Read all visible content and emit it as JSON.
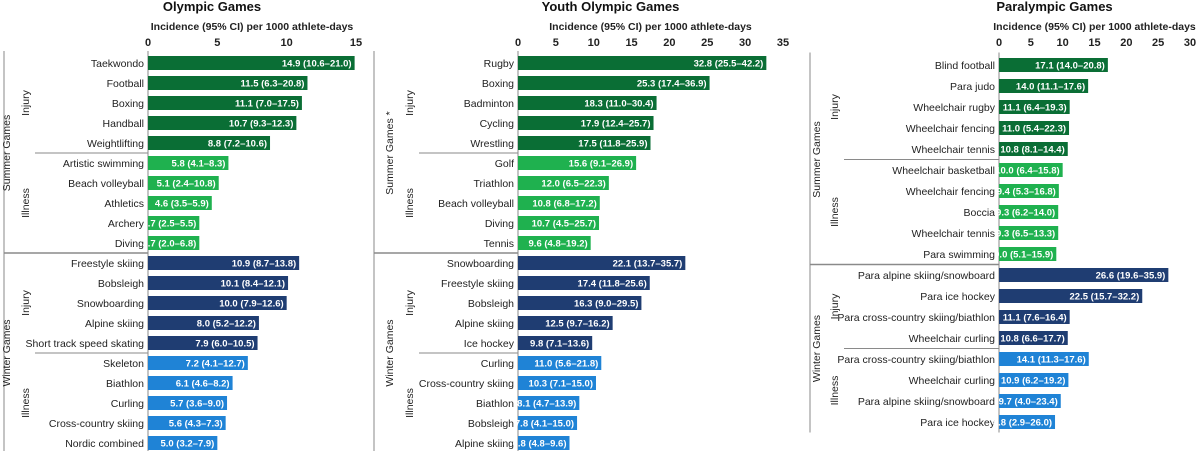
{
  "figure": {
    "charts": [
      {
        "title": "Olympic Games",
        "axis_label": "Incidence (95% CI) per 1000 athlete-days",
        "xlim": [
          0,
          15
        ],
        "ticks": [
          "0",
          "5",
          "10",
          "15"
        ],
        "groups": [
          {
            "games": "Summer Games",
            "sections": [
              {
                "label": "Injury",
                "color": "#0a6e35",
                "bars": [
                  {
                    "category": "Taekwondo",
                    "value": 14.9,
                    "label": "14.9 (10.6–21.0)"
                  },
                  {
                    "category": "Football",
                    "value": 11.5,
                    "label": "11.5 (6.3–20.8)"
                  },
                  {
                    "category": "Boxing",
                    "value": 11.1,
                    "label": "11.1 (7.0–17.5)"
                  },
                  {
                    "category": "Handball",
                    "value": 10.7,
                    "label": "10.7 (9.3–12.3)"
                  },
                  {
                    "category": "Weightlifting",
                    "value": 8.8,
                    "label": "8.8 (7.2–10.6)"
                  }
                ]
              },
              {
                "label": "Illness",
                "color": "#1fb14f",
                "bars": [
                  {
                    "category": "Artistic swimming",
                    "value": 5.8,
                    "label": "5.8 (4.1–8.3)"
                  },
                  {
                    "category": "Beach volleyball",
                    "value": 5.1,
                    "label": "5.1 (2.4–10.8)"
                  },
                  {
                    "category": "Athletics",
                    "value": 4.6,
                    "label": "4.6 (3.5–5.9)"
                  },
                  {
                    "category": "Archery",
                    "value": 3.7,
                    "label": "3.7 (2.5–5.5)"
                  },
                  {
                    "category": "Diving",
                    "value": 3.7,
                    "label": "3.7 (2.0–6.8)"
                  }
                ]
              }
            ]
          },
          {
            "games": "Winter Games",
            "sections": [
              {
                "label": "Injury",
                "color": "#1f3d72",
                "bars": [
                  {
                    "category": "Freestyle skiing",
                    "value": 10.9,
                    "label": "10.9 (8.7–13.8)"
                  },
                  {
                    "category": "Bobsleigh",
                    "value": 10.1,
                    "label": "10.1 (8.4–12.1)"
                  },
                  {
                    "category": "Snowboarding",
                    "value": 10.0,
                    "label": "10.0 (7.9–12.6)"
                  },
                  {
                    "category": "Alpine skiing",
                    "value": 8.0,
                    "label": "8.0 (5.2–12.2)"
                  },
                  {
                    "category": "Short track speed skating",
                    "value": 7.9,
                    "label": "7.9 (6.0–10.5)"
                  }
                ]
              },
              {
                "label": "Illness",
                "color": "#1f83d6",
                "bars": [
                  {
                    "category": "Skeleton",
                    "value": 7.2,
                    "label": "7.2 (4.1–12.7)"
                  },
                  {
                    "category": "Biathlon",
                    "value": 6.1,
                    "label": "6.1 (4.6–8.2)"
                  },
                  {
                    "category": "Curling",
                    "value": 5.7,
                    "label": "5.7 (3.6–9.0)"
                  },
                  {
                    "category": "Cross-country skiing",
                    "value": 5.6,
                    "label": "5.6 (4.3–7.3)"
                  },
                  {
                    "category": "Nordic combined",
                    "value": 5.0,
                    "label": "5.0 (3.2–7.9)"
                  }
                ]
              }
            ]
          }
        ]
      },
      {
        "title": "Youth Olympic Games",
        "axis_label": "Incidence (95% CI) per 1000 athlete-days",
        "xlim": [
          0,
          35
        ],
        "ticks": [
          "0",
          "5",
          "10",
          "15",
          "20",
          "25",
          "30",
          "35"
        ],
        "groups": [
          {
            "games": "Summer Games *",
            "sections": [
              {
                "label": "Injury",
                "color": "#0a6e35",
                "bars": [
                  {
                    "category": "Rugby",
                    "value": 32.8,
                    "label": "32.8 (25.5–42.2)"
                  },
                  {
                    "category": "Boxing",
                    "value": 25.3,
                    "label": "25.3 (17.4–36.9)"
                  },
                  {
                    "category": "Badminton",
                    "value": 18.3,
                    "label": "18.3 (11.0–30.4)"
                  },
                  {
                    "category": "Cycling",
                    "value": 17.9,
                    "label": "17.9 (12.4–25.7)"
                  },
                  {
                    "category": "Wrestling",
                    "value": 17.5,
                    "label": "17.5 (11.8–25.9)"
                  }
                ]
              },
              {
                "label": "Illness",
                "color": "#1fb14f",
                "bars": [
                  {
                    "category": "Golf",
                    "value": 15.6,
                    "label": "15.6 (9.1–26.9)"
                  },
                  {
                    "category": "Triathlon",
                    "value": 12.0,
                    "label": "12.0 (6.5–22.3)"
                  },
                  {
                    "category": "Beach volleyball",
                    "value": 10.8,
                    "label": "10.8 (6.8–17.2)"
                  },
                  {
                    "category": "Diving",
                    "value": 10.7,
                    "label": "10.7 (4.5–25.7)"
                  },
                  {
                    "category": "Tennis",
                    "value": 9.6,
                    "label": "9.6 (4.8–19.2)"
                  }
                ]
              }
            ]
          },
          {
            "games": "Winter Games",
            "sections": [
              {
                "label": "Injury",
                "color": "#1f3d72",
                "bars": [
                  {
                    "category": "Snowboarding",
                    "value": 22.1,
                    "label": "22.1 (13.7–35.7)"
                  },
                  {
                    "category": "Freestyle skiing",
                    "value": 17.4,
                    "label": "17.4 (11.8–25.6)"
                  },
                  {
                    "category": "Bobsleigh",
                    "value": 16.3,
                    "label": "16.3 (9.0–29.5)"
                  },
                  {
                    "category": "Alpine skiing",
                    "value": 12.5,
                    "label": "12.5 (9.7–16.2)"
                  },
                  {
                    "category": "Ice hockey",
                    "value": 9.8,
                    "label": "9.8 (7.1–13.6)"
                  }
                ]
              },
              {
                "label": "Illness",
                "color": "#1f83d6",
                "bars": [
                  {
                    "category": "Curling",
                    "value": 11.0,
                    "label": "11.0 (5.6–21.8)"
                  },
                  {
                    "category": "Cross-country skiing",
                    "value": 10.3,
                    "label": "10.3 (7.1–15.0)"
                  },
                  {
                    "category": "Biathlon",
                    "value": 8.1,
                    "label": "8.1 (4.7–13.9)"
                  },
                  {
                    "category": "Bobsleigh",
                    "value": 7.8,
                    "label": "7.8 (4.1–15.0)"
                  },
                  {
                    "category": "Alpine skiing",
                    "value": 6.8,
                    "label": "6.8 (4.8–9.6)"
                  }
                ]
              }
            ]
          }
        ]
      },
      {
        "title": "Paralympic Games",
        "axis_label": "Incidence (95% CI) per 1000 athlete-days",
        "xlim": [
          0,
          30
        ],
        "ticks": [
          "0",
          "5",
          "10",
          "15",
          "20",
          "25",
          "30"
        ],
        "groups": [
          {
            "games": "Summer Games",
            "sections": [
              {
                "label": "Injury",
                "color": "#0a6e35",
                "bars": [
                  {
                    "category": "Blind football",
                    "value": 17.1,
                    "label": "17.1 (14.0–20.8)"
                  },
                  {
                    "category": "Para judo",
                    "value": 14.0,
                    "label": "14.0 (11.1–17.6)"
                  },
                  {
                    "category": "Wheelchair rugby",
                    "value": 11.1,
                    "label": "11.1 (6.4–19.3)"
                  },
                  {
                    "category": "Wheelchair fencing",
                    "value": 11.0,
                    "label": "11.0 (5.4–22.3)"
                  },
                  {
                    "category": "Wheelchair tennis",
                    "value": 10.8,
                    "label": "10.8 (8.1–14.4)"
                  }
                ]
              },
              {
                "label": "Illness",
                "color": "#1fb14f",
                "bars": [
                  {
                    "category": "Wheelchair basketball",
                    "value": 10.0,
                    "label": "10.0 (6.4–15.8)"
                  },
                  {
                    "category": "Wheelchair fencing",
                    "value": 9.4,
                    "label": "9.4 (5.3–16.8)"
                  },
                  {
                    "category": "Boccia",
                    "value": 9.3,
                    "label": "9.3 (6.2–14.0)"
                  },
                  {
                    "category": "Wheelchair tennis",
                    "value": 9.3,
                    "label": "9.3 (6.5–13.3)"
                  },
                  {
                    "category": "Para swimming",
                    "value": 9.0,
                    "label": "9.0 (5.1–15.9)"
                  }
                ]
              }
            ]
          },
          {
            "games": "Winter Games",
            "sections": [
              {
                "label": "Injury",
                "color": "#1f3d72",
                "bars": [
                  {
                    "category": "Para alpine skiing/snowboard",
                    "value": 26.6,
                    "label": "26.6 (19.6–35.9)"
                  },
                  {
                    "category": "Para ice hockey",
                    "value": 22.5,
                    "label": "22.5 (15.7–32.2)"
                  },
                  {
                    "category": "Para cross-country skiing/biathlon",
                    "value": 11.1,
                    "label": "11.1 (7.6–16.4)"
                  },
                  {
                    "category": "Wheelchair curling",
                    "value": 10.8,
                    "label": "10.8 (6.6–17.7)"
                  }
                ]
              },
              {
                "label": "Illness",
                "color": "#1f83d6",
                "bars": [
                  {
                    "category": "Para cross-country skiing/biathlon",
                    "value": 14.1,
                    "label": "14.1 (11.3–17.6)"
                  },
                  {
                    "category": "Wheelchair curling",
                    "value": 10.9,
                    "label": "10.9 (6.2–19.2)"
                  },
                  {
                    "category": "Para alpine skiing/snowboard",
                    "value": 9.7,
                    "label": "9.7 (4.0–23.4)"
                  },
                  {
                    "category": "Para ice hockey",
                    "value": 8.8,
                    "label": "8.8 (2.9–26.0)"
                  }
                ]
              }
            ]
          }
        ]
      }
    ]
  },
  "chart_data": [
    {
      "type": "bar",
      "orientation": "horizontal",
      "title": "Olympic Games",
      "xlabel": "Incidence (95% CI) per 1000 athlete-days",
      "xlim": [
        0,
        15
      ],
      "categories": [
        "Taekwondo",
        "Football",
        "Boxing",
        "Handball",
        "Weightlifting",
        "Artistic swimming",
        "Beach volleyball",
        "Athletics",
        "Archery",
        "Diving",
        "Freestyle skiing",
        "Bobsleigh",
        "Snowboarding",
        "Alpine skiing",
        "Short track speed skating",
        "Skeleton",
        "Biathlon",
        "Curling",
        "Cross-country skiing",
        "Nordic combined"
      ],
      "values": [
        14.9,
        11.5,
        11.1,
        10.7,
        8.8,
        5.8,
        5.1,
        4.6,
        3.7,
        3.7,
        10.9,
        10.1,
        10.0,
        8.0,
        7.9,
        7.2,
        6.1,
        5.7,
        5.6,
        5.0
      ],
      "ci_lower": [
        10.6,
        6.3,
        7.0,
        9.3,
        7.2,
        4.1,
        2.4,
        3.5,
        2.5,
        2.0,
        8.7,
        8.4,
        7.9,
        5.2,
        6.0,
        4.1,
        4.6,
        3.6,
        4.3,
        3.2
      ],
      "ci_upper": [
        21.0,
        20.8,
        17.5,
        12.3,
        10.6,
        8.3,
        10.8,
        5.9,
        5.5,
        6.8,
        13.8,
        12.1,
        12.6,
        12.2,
        10.5,
        12.7,
        8.2,
        9.0,
        7.3,
        7.9
      ],
      "grid": false,
      "legend": "none"
    },
    {
      "type": "bar",
      "orientation": "horizontal",
      "title": "Youth Olympic Games",
      "xlabel": "Incidence (95% CI) per 1000 athlete-days",
      "xlim": [
        0,
        35
      ],
      "categories": [
        "Rugby",
        "Boxing",
        "Badminton",
        "Cycling",
        "Wrestling",
        "Golf",
        "Triathlon",
        "Beach volleyball",
        "Diving",
        "Tennis",
        "Snowboarding",
        "Freestyle skiing",
        "Bobsleigh",
        "Alpine skiing",
        "Ice hockey",
        "Curling",
        "Cross-country skiing",
        "Biathlon",
        "Bobsleigh",
        "Alpine skiing"
      ],
      "values": [
        32.8,
        25.3,
        18.3,
        17.9,
        17.5,
        15.6,
        12.0,
        10.8,
        10.7,
        9.6,
        22.1,
        17.4,
        16.3,
        12.5,
        9.8,
        11.0,
        10.3,
        8.1,
        7.8,
        6.8
      ],
      "ci_lower": [
        25.5,
        17.4,
        11.0,
        12.4,
        11.8,
        9.1,
        6.5,
        6.8,
        4.5,
        4.8,
        13.7,
        11.8,
        9.0,
        9.7,
        7.1,
        5.6,
        7.1,
        4.7,
        4.1,
        4.8
      ],
      "ci_upper": [
        42.2,
        36.9,
        30.4,
        25.7,
        25.9,
        26.9,
        22.3,
        17.2,
        25.7,
        19.2,
        35.7,
        25.6,
        29.5,
        16.2,
        13.6,
        21.8,
        15.0,
        13.9,
        15.0,
        9.6
      ],
      "grid": false,
      "legend": "none"
    },
    {
      "type": "bar",
      "orientation": "horizontal",
      "title": "Paralympic Games",
      "xlabel": "Incidence (95% CI) per 1000 athlete-days",
      "xlim": [
        0,
        30
      ],
      "categories": [
        "Blind football",
        "Para judo",
        "Wheelchair rugby",
        "Wheelchair fencing",
        "Wheelchair tennis",
        "Wheelchair basketball",
        "Wheelchair fencing",
        "Boccia",
        "Wheelchair tennis",
        "Para swimming",
        "Para alpine skiing/snowboard",
        "Para ice hockey",
        "Para cross-country skiing/biathlon",
        "Wheelchair curling",
        "Para cross-country skiing/biathlon",
        "Wheelchair curling",
        "Para alpine skiing/snowboard",
        "Para ice hockey"
      ],
      "values": [
        17.1,
        14.0,
        11.1,
        11.0,
        10.8,
        10.0,
        9.4,
        9.3,
        9.3,
        9.0,
        26.6,
        22.5,
        11.1,
        10.8,
        14.1,
        10.9,
        9.7,
        8.8
      ],
      "ci_lower": [
        14.0,
        11.1,
        6.4,
        5.4,
        8.1,
        6.4,
        5.3,
        6.2,
        6.5,
        5.1,
        19.6,
        15.7,
        7.6,
        6.6,
        11.3,
        6.2,
        4.0,
        2.9
      ],
      "ci_upper": [
        20.8,
        17.6,
        19.3,
        22.3,
        14.4,
        15.8,
        16.8,
        14.0,
        13.3,
        15.9,
        35.9,
        32.2,
        16.4,
        17.7,
        17.6,
        19.2,
        23.4,
        26.0
      ],
      "grid": false,
      "legend": "none"
    }
  ]
}
